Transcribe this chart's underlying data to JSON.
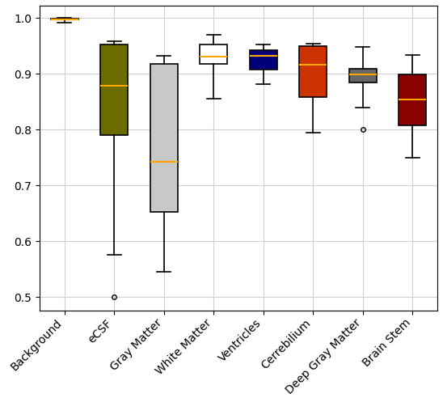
{
  "categories": [
    "Background",
    "eCSF",
    "Gray Matter",
    "White Matter",
    "Ventricles",
    "Cerrebilium",
    "Deep Gray Matter",
    "Brain Stem"
  ],
  "colors": [
    "#C86400",
    "#6B6B00",
    "#C8C8C8",
    "#FFFFFF",
    "#00007A",
    "#CC3300",
    "#666666",
    "#8B0000"
  ],
  "box_data": [
    {
      "whislo": 0.992,
      "q1": 0.997,
      "med": 0.998,
      "q3": 0.999,
      "whishi": 1.0,
      "fliers": []
    },
    {
      "whislo": 0.575,
      "q1": 0.79,
      "med": 0.878,
      "q3": 0.952,
      "whishi": 0.958,
      "fliers": [
        0.5
      ]
    },
    {
      "whislo": 0.545,
      "q1": 0.652,
      "med": 0.742,
      "q3": 0.918,
      "whishi": 0.932,
      "fliers": []
    },
    {
      "whislo": 0.855,
      "q1": 0.918,
      "med": 0.93,
      "q3": 0.952,
      "whishi": 0.97,
      "fliers": []
    },
    {
      "whislo": 0.882,
      "q1": 0.908,
      "med": 0.932,
      "q3": 0.942,
      "whishi": 0.953,
      "fliers": []
    },
    {
      "whislo": 0.795,
      "q1": 0.858,
      "med": 0.916,
      "q3": 0.95,
      "whishi": 0.954,
      "fliers": []
    },
    {
      "whislo": 0.84,
      "q1": 0.884,
      "med": 0.899,
      "q3": 0.909,
      "whishi": 0.948,
      "fliers": [
        0.8
      ]
    },
    {
      "whislo": 0.75,
      "q1": 0.808,
      "med": 0.854,
      "q3": 0.899,
      "whishi": 0.933,
      "fliers": []
    }
  ],
  "ylim": [
    0.475,
    1.022
  ],
  "yticks": [
    0.5,
    0.6,
    0.7,
    0.8,
    0.9,
    1.0
  ],
  "median_color": "#FFA500",
  "whisker_color": "#000000",
  "flier_color": "#000000",
  "grid_color": "#D0D0D0",
  "background_color": "#FFFFFF",
  "figsize": [
    5.48,
    4.97
  ],
  "dpi": 100
}
